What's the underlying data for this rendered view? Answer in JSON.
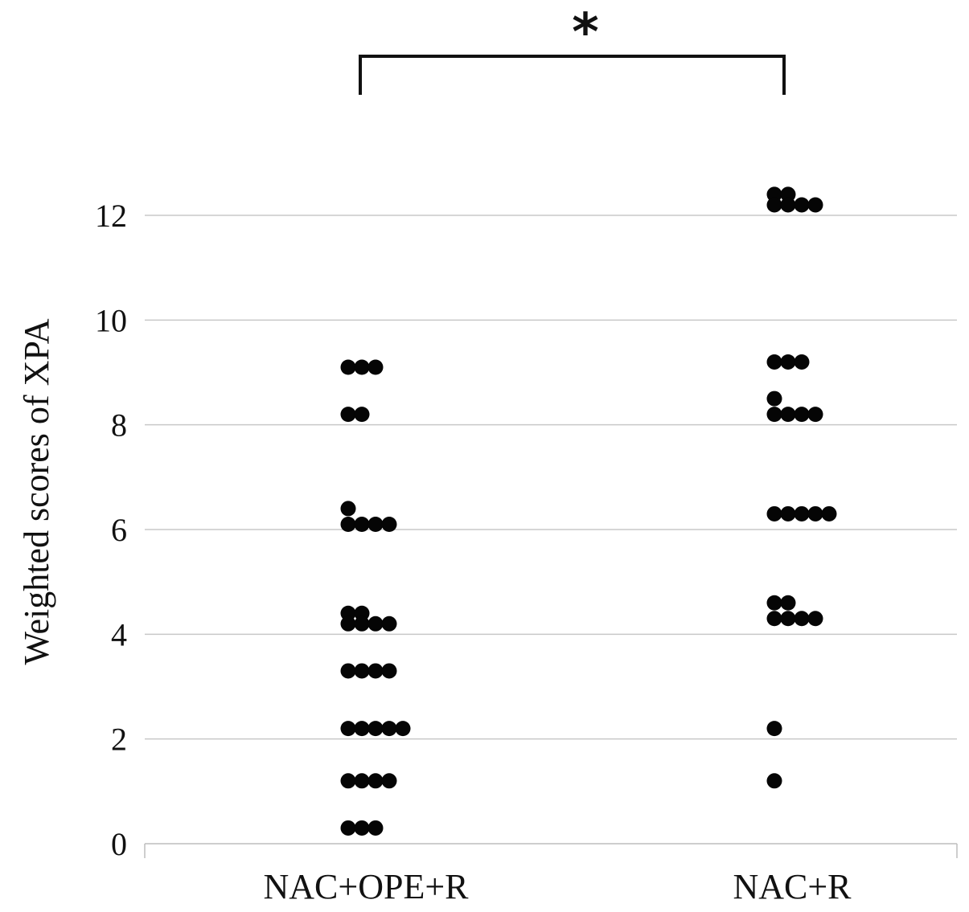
{
  "chart_data": {
    "type": "scatter",
    "ylabel": "Weighted scores of XPA",
    "xlabel": "",
    "ylim": [
      0,
      12
    ],
    "yticks": [
      "0",
      "2",
      "4",
      "6",
      "8",
      "10",
      "12"
    ],
    "grid": true,
    "categories": [
      "NAC+OPE+R",
      "NAC+R"
    ],
    "series": [
      {
        "category": "NAC+OPE+R",
        "points": [
          {
            "y": 9.1,
            "n": 3
          },
          {
            "y": 8.2,
            "n": 2
          },
          {
            "y": 6.4,
            "n": 1
          },
          {
            "y": 6.1,
            "n": 4
          },
          {
            "y": 4.4,
            "n": 2
          },
          {
            "y": 4.2,
            "n": 4
          },
          {
            "y": 3.3,
            "n": 4
          },
          {
            "y": 2.2,
            "n": 5
          },
          {
            "y": 1.2,
            "n": 4
          },
          {
            "y": 0.3,
            "n": 3
          }
        ]
      },
      {
        "category": "NAC+R",
        "points": [
          {
            "y": 12.4,
            "n": 2
          },
          {
            "y": 12.2,
            "n": 4
          },
          {
            "y": 9.2,
            "n": 3
          },
          {
            "y": 8.5,
            "n": 1
          },
          {
            "y": 8.2,
            "n": 4
          },
          {
            "y": 6.3,
            "n": 5
          },
          {
            "y": 4.6,
            "n": 2
          },
          {
            "y": 4.3,
            "n": 4
          },
          {
            "y": 2.2,
            "n": 1
          },
          {
            "y": 1.2,
            "n": 1
          }
        ]
      }
    ],
    "significance": {
      "between": [
        "NAC+OPE+R",
        "NAC+R"
      ],
      "label": "*"
    }
  }
}
